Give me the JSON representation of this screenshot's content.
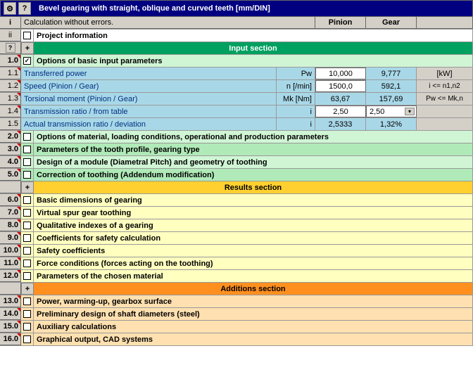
{
  "title": "Bevel gearing with straight, oblique and curved teeth [mm/DIN]",
  "header": {
    "i": "i",
    "ii": "ii",
    "calc": "Calculation without errors.",
    "pinion": "Pinion",
    "gear": "Gear",
    "proj": "Project information"
  },
  "sections": {
    "input": "Input section",
    "results": "Results section",
    "additions": "Additions section"
  },
  "rows": {
    "r1_0": {
      "idx": "1.0",
      "label": "Options of basic input parameters"
    },
    "r1_1": {
      "idx": "1.1",
      "label": "Transferred power",
      "sym": "Pw",
      "v1": "10,000",
      "v2": "9,777",
      "unit": "[kW]"
    },
    "r1_2": {
      "idx": "1.2",
      "label": "Speed (Pinion / Gear)",
      "sym": "n [/min]",
      "v1": "1500,0",
      "v2": "592,1",
      "unit": "i <= n1,n2"
    },
    "r1_3": {
      "idx": "1.3",
      "label": "Torsional moment (Pinion / Gear)",
      "sym": "Mk [Nm]",
      "v1": "63,67",
      "v2": "157,69",
      "unit": "Pw <= Mk,n"
    },
    "r1_4": {
      "idx": "1.4",
      "label": "Transmission ratio / from table",
      "sym": "i",
      "v1": "2,50",
      "v2": "2,50"
    },
    "r1_5": {
      "idx": "1.5",
      "label": "Actual transmission ratio / deviation",
      "sym": "i",
      "v1": "2,5333",
      "v2": "1,32%"
    },
    "r2_0": {
      "idx": "2.0",
      "label": "Options of material, loading conditions, operational and production parameters"
    },
    "r3_0": {
      "idx": "3.0",
      "label": "Parameters of the tooth profile, gearing type"
    },
    "r4_0": {
      "idx": "4.0",
      "label": "Design of a module (Diametral Pitch) and geometry of toothing"
    },
    "r5_0": {
      "idx": "5.0",
      "label": "Correction of toothing (Addendum modification)"
    },
    "r6_0": {
      "idx": "6.0",
      "label": "Basic dimensions of gearing"
    },
    "r7_0": {
      "idx": "7.0",
      "label": "Virtual spur gear toothing"
    },
    "r8_0": {
      "idx": "8.0",
      "label": "Qualitative indexes of a gearing"
    },
    "r9_0": {
      "idx": "9.0",
      "label": "Coefficients for safety calculation"
    },
    "r10_0": {
      "idx": "10.0",
      "label": "Safety coefficients"
    },
    "r11_0": {
      "idx": "11.0",
      "label": "Force conditions (forces acting on the toothing)"
    },
    "r12_0": {
      "idx": "12.0",
      "label": "Parameters of the chosen material"
    },
    "r13_0": {
      "idx": "13.0",
      "label": "Power, warming-up, gearbox surface"
    },
    "r14_0": {
      "idx": "14.0",
      "label": "Preliminary design of shaft diameters (steel)"
    },
    "r15_0": {
      "idx": "15.0",
      "label": "Auxiliary calculations"
    },
    "r16_0": {
      "idx": "16.0",
      "label": "Graphical output, CAD systems"
    }
  },
  "colors": {
    "titlebar": "#000080",
    "input_section": "#00a060",
    "results_section": "#ffd030",
    "additions_section": "#ff9020",
    "lgreen": "#d0f5d5",
    "lblue": "#a8d8e8",
    "lyellow": "#ffffc0",
    "lorange": "#ffe0b0",
    "gray": "#d4d0c8"
  }
}
